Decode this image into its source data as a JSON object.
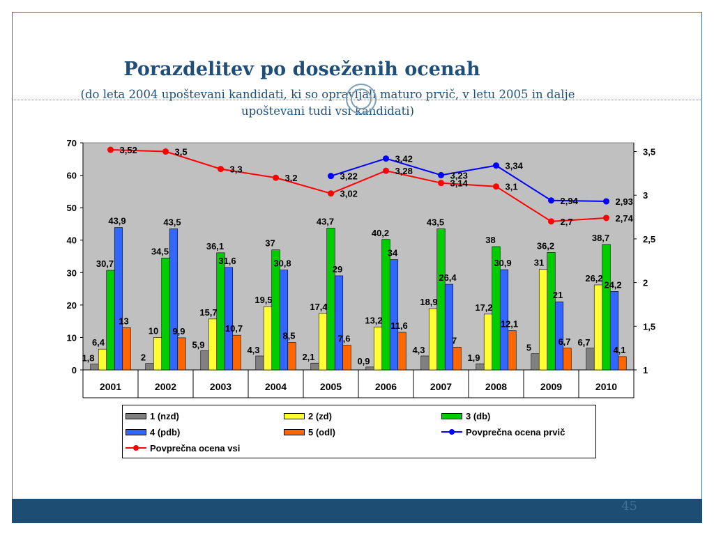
{
  "slide": {
    "title": "Porazdelitev po doseženih ocenah",
    "subtitle_line1": "(do leta 2004 upoštevani kandidati, ki so opravljali maturo prvič, v letu 2005 in dalje",
    "subtitle_line2": "upoštevani tudi vsi kandidati)",
    "page_number": "45"
  },
  "colors": {
    "s1": "#808080",
    "s2": "#ffff33",
    "s3": "#00cc00",
    "s4": "#3366ff",
    "s5": "#ff6600",
    "avg_first": "#0000ff",
    "avg_all": "#ff0000",
    "plot_bg": "#c0c0c0"
  },
  "legend": {
    "s1": "1 (nzd)",
    "s2": "2 (zd)",
    "s3": "3 (db)",
    "s4": "4 (pdb)",
    "s5": "5 (odl)",
    "avg_first": "Povprečna ocena prvič",
    "avg_all": "Povprečna ocena vsi"
  },
  "chart_data": {
    "type": "bar",
    "title": "Porazdelitev po doseženih ocenah",
    "categories": [
      "2001",
      "2002",
      "2003",
      "2004",
      "2005",
      "2006",
      "2007",
      "2008",
      "2009",
      "2010"
    ],
    "ylim": [
      0,
      70
    ],
    "yticks": [
      "0",
      "10",
      "20",
      "30",
      "40",
      "50",
      "60",
      "70"
    ],
    "y2lim": [
      1,
      3.6
    ],
    "y2ticks": [
      "1",
      "1,5",
      "2",
      "2,5",
      "3",
      "3,5"
    ],
    "series": [
      {
        "key": "s1",
        "name": "1 (nzd)",
        "values": [
          1.8,
          2,
          5.9,
          4.3,
          2.1,
          0.9,
          4.3,
          1.9,
          5,
          6.7
        ],
        "labels": [
          "1,8",
          "2",
          "5,9",
          "4,3",
          "2,1",
          "0,9",
          "4,3",
          "1,9",
          "5",
          "6,7"
        ]
      },
      {
        "key": "s2",
        "name": "2 (zd)",
        "values": [
          6.4,
          10,
          15.7,
          19.5,
          17.4,
          13.2,
          18.9,
          17.2,
          31,
          26.2
        ],
        "labels": [
          "6,4",
          "10",
          "15,7",
          "19,5",
          "17,4",
          "13,2",
          "18,9",
          "17,2",
          "31",
          "26,2"
        ]
      },
      {
        "key": "s3",
        "name": "3 (db)",
        "values": [
          30.7,
          34.5,
          36.1,
          37,
          43.7,
          40.2,
          43.5,
          38,
          36.2,
          38.7
        ],
        "labels": [
          "30,7",
          "34,5",
          "36,1",
          "37",
          "43,7",
          "40,2",
          "43,5",
          "38",
          "36,2",
          "38,7"
        ]
      },
      {
        "key": "s4",
        "name": "4 (pdb)",
        "values": [
          43.9,
          43.5,
          31.6,
          30.8,
          29,
          34,
          26.4,
          30.9,
          21,
          24.2
        ],
        "labels": [
          "43,9",
          "43,5",
          "31,6",
          "30,8",
          "29",
          "34",
          "26,4",
          "30,9",
          "21",
          "24,2"
        ]
      },
      {
        "key": "s5",
        "name": "5 (odl)",
        "values": [
          13,
          9.9,
          10.7,
          8.5,
          7.6,
          11.6,
          7,
          12.1,
          6.7,
          4.1
        ],
        "labels": [
          "13",
          "9,9",
          "10,7",
          "8,5",
          "7,6",
          "11,6",
          "7",
          "12,1",
          "6,7",
          "4,1"
        ]
      }
    ],
    "lines": [
      {
        "key": "avg_first",
        "name": "Povprečna ocena prvič",
        "axis": "right",
        "values": [
          null,
          null,
          null,
          null,
          3.22,
          3.42,
          3.23,
          3.34,
          2.94,
          2.93
        ],
        "labels": [
          "",
          "",
          "",
          "",
          "3,22",
          "3,42",
          "3,23",
          "3,34",
          "2,94",
          "2,93"
        ]
      },
      {
        "key": "avg_all",
        "name": "Povprečna ocena vsi",
        "axis": "right",
        "values": [
          3.52,
          3.5,
          3.3,
          3.2,
          3.02,
          3.28,
          3.14,
          3.1,
          2.7,
          2.74
        ],
        "labels": [
          "3,52",
          "3,5",
          "3,3",
          "3,2",
          "3,02",
          "3,28",
          "3,14",
          "3,1",
          "2,7",
          "2,74"
        ]
      }
    ]
  }
}
